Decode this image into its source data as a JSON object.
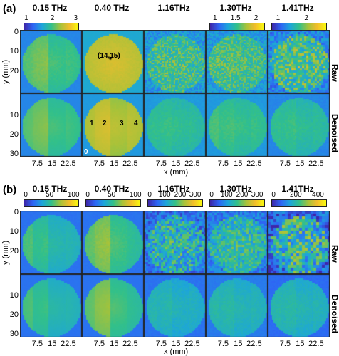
{
  "figure": {
    "section_a": {
      "label": "(a)",
      "frequencies": [
        "0.15 THz",
        "0.40 THz",
        "1.16THz",
        "1.30THz",
        "1.41THz"
      ],
      "colorbars": [
        {
          "ticks": [
            "1",
            "2",
            "3"
          ],
          "min": 0.7,
          "max": 3.2,
          "tick_values": [
            1,
            2,
            3
          ]
        },
        null,
        null,
        {
          "ticks": [
            "1",
            "1.5",
            "2"
          ],
          "min": 0.8,
          "max": 2.2,
          "tick_values": [
            1,
            1.5,
            2
          ]
        },
        {
          "ticks": [
            "1",
            "2"
          ],
          "min": 0.7,
          "max": 2.6,
          "tick_values": [
            1,
            2
          ]
        }
      ],
      "rows": [
        "Raw",
        "Denoised"
      ],
      "y_ticks": [
        "0",
        "10",
        "20",
        "30"
      ],
      "y_label": "y (mm)",
      "x_ticks": [
        "7.5",
        "15",
        "22.5"
      ],
      "x_label": "x (mm)",
      "annotation_point": "(14,15)",
      "strip_labels": [
        "1",
        "2",
        "3",
        "4"
      ],
      "zero_label": "0"
    },
    "section_b": {
      "label": "(b)",
      "frequencies": [
        "0.15 THz",
        "0.40 THz",
        "1.16THz",
        "1.30THz",
        "1.41THz"
      ],
      "colorbars": [
        {
          "ticks": [
            "0",
            "50",
            "100"
          ],
          "min": 0,
          "max": 110,
          "tick_values": [
            0,
            50,
            100
          ]
        },
        {
          "ticks": [
            "0",
            "50",
            "100"
          ],
          "min": 0,
          "max": 110,
          "tick_values": [
            0,
            50,
            100
          ]
        },
        {
          "ticks": [
            "0",
            "100",
            "200",
            "300"
          ],
          "min": 0,
          "max": 360,
          "tick_values": [
            0,
            100,
            200,
            300
          ]
        },
        {
          "ticks": [
            "0",
            "100",
            "200",
            "300"
          ],
          "min": 0,
          "max": 360,
          "tick_values": [
            0,
            100,
            200,
            300
          ]
        },
        {
          "ticks": [
            "0",
            "200",
            "400"
          ],
          "min": 0,
          "max": 470,
          "tick_values": [
            0,
            200,
            400
          ]
        }
      ],
      "rows": [
        "Raw",
        "Denoised"
      ],
      "y_ticks": [
        "0",
        "10",
        "20",
        "30"
      ],
      "y_label": "y (mm)",
      "x_ticks": [
        "7.5",
        "15",
        "22.5"
      ],
      "x_label": "x (mm)"
    },
    "colors": {
      "dark_blue": "#3e26a8",
      "blue": "#2e66f5",
      "cyan": "#1da6d9",
      "green": "#32c08a",
      "yellow_green": "#a6c23a",
      "orange": "#f2bd2b",
      "yellow": "#f9fb0e"
    }
  }
}
